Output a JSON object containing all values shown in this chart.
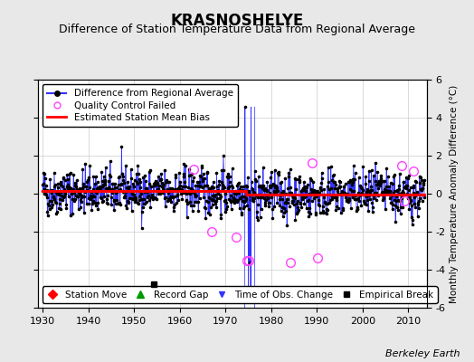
{
  "title": "KRASNOSHELYE",
  "subtitle": "Difference of Station Temperature Data from Regional Average",
  "ylabel": "Monthly Temperature Anomaly Difference (°C)",
  "xlabel_years": [
    1930,
    1940,
    1950,
    1960,
    1970,
    1980,
    1990,
    2000,
    2010
  ],
  "xlim": [
    1929,
    2014
  ],
  "ylim": [
    -6,
    6
  ],
  "yticks": [
    -6,
    -4,
    -2,
    0,
    2,
    4,
    6
  ],
  "background_color": "#e8e8e8",
  "plot_bg_color": "#ffffff",
  "line_color": "#3333ff",
  "bias_color": "#ff0000",
  "qc_color": "#ff44ff",
  "marker_color": "#000000",
  "seed": 42,
  "n_points": 1010,
  "x_start": 1930.0,
  "x_end": 2013.5,
  "bias_before": 0.13,
  "bias_after": -0.05,
  "bias_change_year": 1974.5,
  "empirical_break_x": 1954.3,
  "empirical_break_y": -4.75,
  "time_obs_change_x1": 1974.1,
  "time_obs_change_x2": 1976.2,
  "qc_failed_regions": [
    [
      1963.0,
      1.3
    ],
    [
      1967.0,
      -2.0
    ],
    [
      1972.3,
      -2.3
    ],
    [
      1974.7,
      -3.5
    ],
    [
      1975.1,
      -3.5
    ],
    [
      1984.3,
      -3.6
    ],
    [
      1989.0,
      1.6
    ],
    [
      1990.1,
      -3.4
    ],
    [
      2008.5,
      1.5
    ],
    [
      2009.2,
      -0.4
    ],
    [
      2011.1,
      1.2
    ]
  ],
  "spike_x": 1974.3,
  "spike_y": 4.55,
  "gap_bottom_x": 1975.5,
  "gap_bottom_y": -5.3,
  "gap_top_x": 1975.5,
  "gap_top_y": 4.55,
  "footer": "Berkeley Earth",
  "title_fontsize": 12,
  "subtitle_fontsize": 9,
  "tick_fontsize": 8,
  "ylabel_fontsize": 7.5,
  "legend_fontsize": 7.5,
  "footer_fontsize": 8
}
